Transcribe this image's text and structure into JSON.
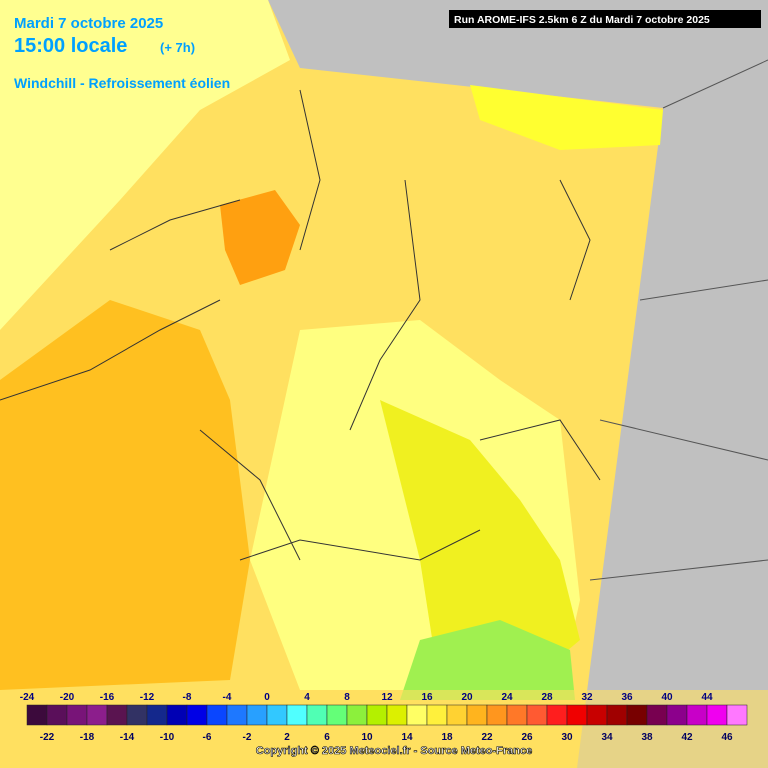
{
  "header": {
    "date": "Mardi 7 octobre 2025",
    "time": "15:00 locale",
    "offset": "(+ 7h)",
    "parameter": "Windchill - Refroissement éolien",
    "run": "Run AROME-IFS 2.5km 6 Z du Mardi 7 octobre 2025"
  },
  "legend": {
    "values": [
      -24,
      -22,
      -20,
      -18,
      -16,
      -14,
      -12,
      -10,
      -8,
      -6,
      -4,
      -2,
      0,
      2,
      4,
      6,
      8,
      10,
      12,
      14,
      16,
      18,
      20,
      22,
      24,
      26,
      28,
      30,
      32,
      34,
      36,
      38,
      40,
      42,
      44,
      46
    ],
    "colors": [
      "#3c0a3c",
      "#5a0f5a",
      "#781478",
      "#8c1e8c",
      "#5a1450",
      "#323264",
      "#14288c",
      "#0000b4",
      "#0000e6",
      "#0a46ff",
      "#1e78ff",
      "#28a0ff",
      "#32c8ff",
      "#50ffff",
      "#50ffb4",
      "#64ff78",
      "#8cf03c",
      "#b4f000",
      "#dcf000",
      "#ffff64",
      "#fff03c",
      "#ffd232",
      "#ffb41e",
      "#ff961e",
      "#ff7828",
      "#ff5a32",
      "#ff1e1e",
      "#f00000",
      "#c80000",
      "#a00000",
      "#780000",
      "#780050",
      "#8c008c",
      "#c800c8",
      "#f000f0",
      "#ff78ff"
    ]
  },
  "footer": {
    "copyright": "Copyright © 2025 Meteociel.fr - Source Meteo-France"
  }
}
